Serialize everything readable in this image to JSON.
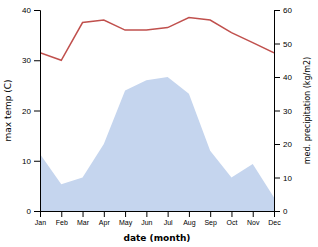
{
  "chart_data": {
    "type": "line",
    "categories": [
      "Jan",
      "Feb",
      "Mar",
      "Apr",
      "May",
      "Jun",
      "Jul",
      "Aug",
      "Sep",
      "Oct",
      "Nov",
      "Dec"
    ],
    "x_label": "date (month)",
    "y_label": "max temp (C)",
    "y2_label": "med. precipitation (kg/m2)",
    "series": [
      {
        "type": "area",
        "axis": "y2",
        "color": "#c5d5ee",
        "values": [
          17,
          8,
          10,
          20,
          36,
          39,
          40,
          35,
          18,
          10,
          14,
          4
        ]
      },
      {
        "type": "line",
        "color": "#c0504d",
        "values": [
          31.5,
          30.0,
          37.5,
          38.0,
          36.0,
          36.0,
          36.5,
          38.5,
          38.0,
          35.5,
          33.5,
          31.5
        ]
      }
    ],
    "ylim": [
      0,
      40
    ],
    "yticks": [
      0,
      10,
      20,
      30,
      40
    ],
    "y2lim": [
      0,
      60
    ],
    "y2ticks": [
      0,
      10,
      20,
      30,
      40,
      50,
      60
    ],
    "grid": false
  }
}
